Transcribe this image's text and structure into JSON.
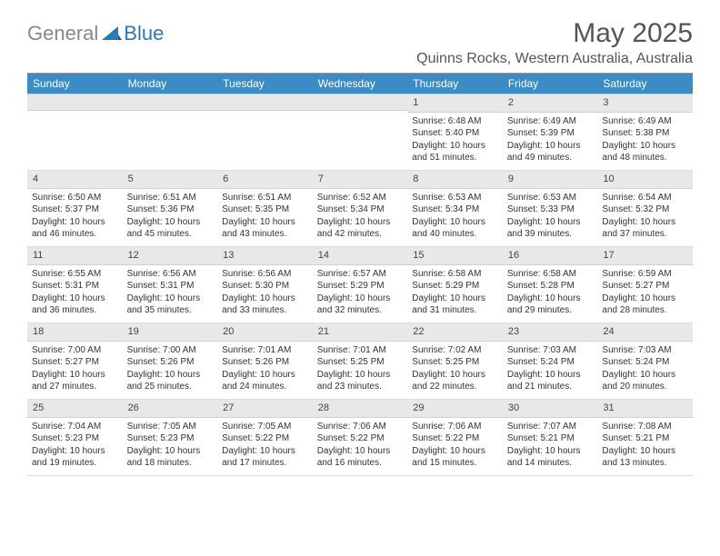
{
  "brand": {
    "general": "General",
    "blue": "Blue"
  },
  "title": "May 2025",
  "location": "Quinns Rocks, Western Australia, Australia",
  "colors": {
    "header_bg": "#3b8bc4",
    "header_text": "#ffffff",
    "daynum_bg": "#e8e8e8",
    "text": "#333333",
    "logo_gray": "#888888",
    "logo_blue": "#2a7ab8"
  },
  "weekdays": [
    "Sunday",
    "Monday",
    "Tuesday",
    "Wednesday",
    "Thursday",
    "Friday",
    "Saturday"
  ],
  "weeks": [
    [
      {
        "empty": true
      },
      {
        "empty": true
      },
      {
        "empty": true
      },
      {
        "empty": true
      },
      {
        "day": "1",
        "sunrise": "Sunrise: 6:48 AM",
        "sunset": "Sunset: 5:40 PM",
        "daylight": "Daylight: 10 hours and 51 minutes."
      },
      {
        "day": "2",
        "sunrise": "Sunrise: 6:49 AM",
        "sunset": "Sunset: 5:39 PM",
        "daylight": "Daylight: 10 hours and 49 minutes."
      },
      {
        "day": "3",
        "sunrise": "Sunrise: 6:49 AM",
        "sunset": "Sunset: 5:38 PM",
        "daylight": "Daylight: 10 hours and 48 minutes."
      }
    ],
    [
      {
        "day": "4",
        "sunrise": "Sunrise: 6:50 AM",
        "sunset": "Sunset: 5:37 PM",
        "daylight": "Daylight: 10 hours and 46 minutes."
      },
      {
        "day": "5",
        "sunrise": "Sunrise: 6:51 AM",
        "sunset": "Sunset: 5:36 PM",
        "daylight": "Daylight: 10 hours and 45 minutes."
      },
      {
        "day": "6",
        "sunrise": "Sunrise: 6:51 AM",
        "sunset": "Sunset: 5:35 PM",
        "daylight": "Daylight: 10 hours and 43 minutes."
      },
      {
        "day": "7",
        "sunrise": "Sunrise: 6:52 AM",
        "sunset": "Sunset: 5:34 PM",
        "daylight": "Daylight: 10 hours and 42 minutes."
      },
      {
        "day": "8",
        "sunrise": "Sunrise: 6:53 AM",
        "sunset": "Sunset: 5:34 PM",
        "daylight": "Daylight: 10 hours and 40 minutes."
      },
      {
        "day": "9",
        "sunrise": "Sunrise: 6:53 AM",
        "sunset": "Sunset: 5:33 PM",
        "daylight": "Daylight: 10 hours and 39 minutes."
      },
      {
        "day": "10",
        "sunrise": "Sunrise: 6:54 AM",
        "sunset": "Sunset: 5:32 PM",
        "daylight": "Daylight: 10 hours and 37 minutes."
      }
    ],
    [
      {
        "day": "11",
        "sunrise": "Sunrise: 6:55 AM",
        "sunset": "Sunset: 5:31 PM",
        "daylight": "Daylight: 10 hours and 36 minutes."
      },
      {
        "day": "12",
        "sunrise": "Sunrise: 6:56 AM",
        "sunset": "Sunset: 5:31 PM",
        "daylight": "Daylight: 10 hours and 35 minutes."
      },
      {
        "day": "13",
        "sunrise": "Sunrise: 6:56 AM",
        "sunset": "Sunset: 5:30 PM",
        "daylight": "Daylight: 10 hours and 33 minutes."
      },
      {
        "day": "14",
        "sunrise": "Sunrise: 6:57 AM",
        "sunset": "Sunset: 5:29 PM",
        "daylight": "Daylight: 10 hours and 32 minutes."
      },
      {
        "day": "15",
        "sunrise": "Sunrise: 6:58 AM",
        "sunset": "Sunset: 5:29 PM",
        "daylight": "Daylight: 10 hours and 31 minutes."
      },
      {
        "day": "16",
        "sunrise": "Sunrise: 6:58 AM",
        "sunset": "Sunset: 5:28 PM",
        "daylight": "Daylight: 10 hours and 29 minutes."
      },
      {
        "day": "17",
        "sunrise": "Sunrise: 6:59 AM",
        "sunset": "Sunset: 5:27 PM",
        "daylight": "Daylight: 10 hours and 28 minutes."
      }
    ],
    [
      {
        "day": "18",
        "sunrise": "Sunrise: 7:00 AM",
        "sunset": "Sunset: 5:27 PM",
        "daylight": "Daylight: 10 hours and 27 minutes."
      },
      {
        "day": "19",
        "sunrise": "Sunrise: 7:00 AM",
        "sunset": "Sunset: 5:26 PM",
        "daylight": "Daylight: 10 hours and 25 minutes."
      },
      {
        "day": "20",
        "sunrise": "Sunrise: 7:01 AM",
        "sunset": "Sunset: 5:26 PM",
        "daylight": "Daylight: 10 hours and 24 minutes."
      },
      {
        "day": "21",
        "sunrise": "Sunrise: 7:01 AM",
        "sunset": "Sunset: 5:25 PM",
        "daylight": "Daylight: 10 hours and 23 minutes."
      },
      {
        "day": "22",
        "sunrise": "Sunrise: 7:02 AM",
        "sunset": "Sunset: 5:25 PM",
        "daylight": "Daylight: 10 hours and 22 minutes."
      },
      {
        "day": "23",
        "sunrise": "Sunrise: 7:03 AM",
        "sunset": "Sunset: 5:24 PM",
        "daylight": "Daylight: 10 hours and 21 minutes."
      },
      {
        "day": "24",
        "sunrise": "Sunrise: 7:03 AM",
        "sunset": "Sunset: 5:24 PM",
        "daylight": "Daylight: 10 hours and 20 minutes."
      }
    ],
    [
      {
        "day": "25",
        "sunrise": "Sunrise: 7:04 AM",
        "sunset": "Sunset: 5:23 PM",
        "daylight": "Daylight: 10 hours and 19 minutes."
      },
      {
        "day": "26",
        "sunrise": "Sunrise: 7:05 AM",
        "sunset": "Sunset: 5:23 PM",
        "daylight": "Daylight: 10 hours and 18 minutes."
      },
      {
        "day": "27",
        "sunrise": "Sunrise: 7:05 AM",
        "sunset": "Sunset: 5:22 PM",
        "daylight": "Daylight: 10 hours and 17 minutes."
      },
      {
        "day": "28",
        "sunrise": "Sunrise: 7:06 AM",
        "sunset": "Sunset: 5:22 PM",
        "daylight": "Daylight: 10 hours and 16 minutes."
      },
      {
        "day": "29",
        "sunrise": "Sunrise: 7:06 AM",
        "sunset": "Sunset: 5:22 PM",
        "daylight": "Daylight: 10 hours and 15 minutes."
      },
      {
        "day": "30",
        "sunrise": "Sunrise: 7:07 AM",
        "sunset": "Sunset: 5:21 PM",
        "daylight": "Daylight: 10 hours and 14 minutes."
      },
      {
        "day": "31",
        "sunrise": "Sunrise: 7:08 AM",
        "sunset": "Sunset: 5:21 PM",
        "daylight": "Daylight: 10 hours and 13 minutes."
      }
    ]
  ]
}
